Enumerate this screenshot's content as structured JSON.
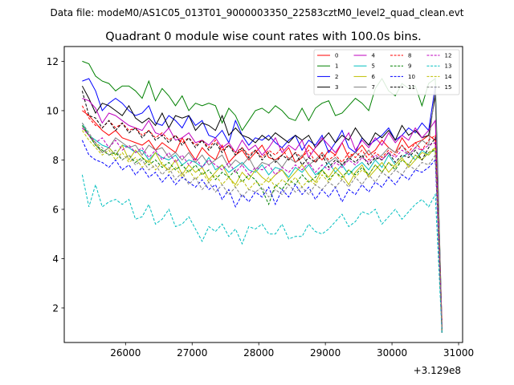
{
  "figure": {
    "suptitle": "Data file: modeM0/AS1C05_013T01_9000003350_22583cztM0_level2_quad_clean.evt",
    "title": "Quadrant 0 module wise count rates with 100.0s bins.",
    "x_offset_label": "+3.129e8"
  },
  "chart_data": {
    "type": "line",
    "title": "Quadrant 0 module wise count rates with 100.0s bins.",
    "xlabel": "",
    "ylabel": "",
    "x_offset": 312900000,
    "xlim": [
      25080,
      31060
    ],
    "ylim": [
      0.6,
      12.6
    ],
    "xticks": [
      26000,
      27000,
      28000,
      29000,
      30000,
      31000
    ],
    "xtick_labels": [
      "26000",
      "27000",
      "28000",
      "29000",
      "30000",
      "31000"
    ],
    "yticks": [
      2,
      4,
      6,
      8,
      10,
      12
    ],
    "ytick_labels": [
      "2",
      "4",
      "6",
      "8",
      "10",
      "12"
    ],
    "x_start": 25350,
    "x_step": 100,
    "n_points": 55,
    "grid": false,
    "legend": {
      "placement": "top-right",
      "columns": 4
    },
    "series": [
      {
        "name": "0",
        "color": "#ff0000",
        "dash": "solid",
        "values": [
          10.0,
          9.8,
          9.5,
          9.2,
          9.0,
          9.2,
          8.9,
          8.8,
          8.7,
          8.6,
          8.8,
          8.4,
          8.7,
          8.5,
          8.3,
          8.9,
          8.4,
          8.0,
          8.5,
          8.2,
          8.0,
          8.6,
          7.9,
          8.2,
          8.4,
          8.0,
          8.3,
          8.6,
          8.1,
          8.0,
          8.2,
          8.5,
          7.9,
          8.1,
          8.6,
          8.3,
          8.0,
          8.4,
          8.2,
          8.7,
          8.1,
          8.3,
          8.6,
          8.2,
          8.4,
          8.8,
          8.5,
          8.3,
          8.9,
          8.5,
          8.7,
          8.8,
          9.0,
          8.8,
          1.5
        ]
      },
      {
        "name": "1",
        "color": "#008000",
        "dash": "solid",
        "values": [
          12.0,
          11.9,
          11.4,
          11.2,
          11.1,
          10.8,
          11.0,
          11.0,
          10.8,
          10.5,
          11.2,
          10.4,
          10.9,
          10.6,
          10.2,
          10.6,
          10.0,
          10.3,
          10.2,
          10.3,
          10.2,
          9.5,
          10.1,
          9.8,
          9.2,
          9.6,
          10.0,
          10.1,
          9.9,
          10.2,
          10.0,
          9.7,
          9.6,
          10.1,
          9.6,
          10.1,
          10.3,
          10.4,
          9.8,
          9.9,
          10.2,
          10.5,
          10.3,
          10.0,
          10.9,
          11.3,
          10.8,
          10.6,
          11.1,
          10.9,
          11.0,
          10.2,
          11.1,
          11.3,
          1.2
        ]
      },
      {
        "name": "2",
        "color": "#0000ff",
        "dash": "solid",
        "values": [
          11.2,
          11.3,
          10.8,
          10.0,
          10.3,
          10.5,
          10.3,
          10.0,
          9.8,
          9.9,
          10.2,
          9.5,
          9.4,
          9.8,
          9.6,
          9.3,
          9.8,
          9.4,
          9.6,
          9.0,
          8.9,
          9.2,
          8.7,
          9.6,
          9.0,
          8.6,
          8.9,
          8.8,
          9.0,
          8.7,
          8.5,
          8.8,
          9.0,
          8.4,
          8.8,
          8.6,
          9.0,
          8.3,
          8.7,
          9.2,
          8.5,
          8.3,
          8.9,
          8.6,
          8.8,
          9.0,
          9.3,
          8.8,
          9.0,
          9.3,
          9.1,
          9.5,
          9.2,
          11.0,
          1.1
        ]
      },
      {
        "name": "3",
        "color": "#000000",
        "dash": "solid",
        "values": [
          11.0,
          10.5,
          9.9,
          10.3,
          10.2,
          10.0,
          9.8,
          10.2,
          9.7,
          9.5,
          9.7,
          9.4,
          9.9,
          9.3,
          9.8,
          9.7,
          9.8,
          9.2,
          9.5,
          9.4,
          9.2,
          9.8,
          9.0,
          9.3,
          9.0,
          8.9,
          8.7,
          9.0,
          8.8,
          9.1,
          8.9,
          8.7,
          9.0,
          8.8,
          9.0,
          8.5,
          8.8,
          9.1,
          8.7,
          9.0,
          8.8,
          9.3,
          8.9,
          8.6,
          9.1,
          8.9,
          9.2,
          8.8,
          9.4,
          9.0,
          9.2,
          8.9,
          9.0,
          10.6,
          1.0
        ]
      },
      {
        "name": "4",
        "color": "#bf00bf",
        "dash": "solid",
        "values": [
          10.5,
          10.4,
          10.1,
          9.5,
          9.9,
          9.8,
          9.6,
          9.4,
          9.3,
          9.2,
          9.6,
          9.1,
          9.0,
          9.3,
          8.8,
          8.9,
          9.1,
          8.7,
          8.8,
          8.6,
          8.9,
          8.5,
          8.7,
          8.3,
          8.8,
          8.4,
          8.6,
          8.2,
          8.5,
          8.9,
          8.3,
          8.6,
          8.4,
          8.8,
          8.1,
          8.5,
          8.9,
          8.6,
          8.3,
          8.7,
          9.1,
          8.4,
          8.8,
          8.5,
          8.9,
          8.6,
          9.1,
          8.7,
          9.0,
          8.8,
          9.3,
          8.9,
          9.2,
          9.6,
          1.3
        ]
      },
      {
        "name": "5",
        "color": "#00bfbf",
        "dash": "solid",
        "values": [
          9.5,
          9.0,
          8.8,
          8.6,
          8.5,
          8.2,
          8.6,
          8.5,
          8.3,
          8.4,
          8.0,
          8.3,
          8.1,
          8.0,
          8.2,
          7.8,
          8.0,
          7.9,
          7.7,
          8.1,
          7.6,
          7.8,
          7.5,
          7.7,
          7.9,
          7.6,
          7.5,
          7.8,
          7.4,
          7.7,
          7.6,
          7.3,
          7.7,
          7.5,
          7.8,
          7.4,
          7.6,
          7.9,
          7.5,
          7.8,
          7.4,
          7.7,
          7.9,
          7.6,
          8.0,
          7.7,
          8.2,
          7.8,
          8.1,
          8.3,
          8.0,
          8.4,
          8.2,
          8.5,
          1.2
        ]
      },
      {
        "name": "6",
        "color": "#bfbf00",
        "dash": "solid",
        "values": [
          9.3,
          9.0,
          8.7,
          8.3,
          8.5,
          8.2,
          8.6,
          8.0,
          8.4,
          8.1,
          7.9,
          8.3,
          7.8,
          7.6,
          8.0,
          7.4,
          7.8,
          7.5,
          7.7,
          7.2,
          7.5,
          7.8,
          7.3,
          7.0,
          7.5,
          7.2,
          7.6,
          7.3,
          7.1,
          7.4,
          7.6,
          7.2,
          7.5,
          7.8,
          7.4,
          7.1,
          7.6,
          7.3,
          7.7,
          7.4,
          7.0,
          7.5,
          7.8,
          7.3,
          7.6,
          7.9,
          7.5,
          7.8,
          8.1,
          7.7,
          8.0,
          8.3,
          8.2,
          8.5,
          1.2
        ]
      },
      {
        "name": "7",
        "color": "#808080",
        "dash": "solid",
        "values": [
          9.4,
          9.0,
          8.6,
          8.3,
          8.5,
          8.9,
          8.7,
          8.5,
          8.6,
          8.2,
          8.6,
          8.4,
          8.5,
          8.1,
          8.3,
          8.0,
          8.3,
          7.9,
          8.2,
          7.8,
          8.0,
          8.2,
          7.7,
          8.0,
          7.8,
          8.1,
          7.6,
          7.9,
          7.8,
          8.0,
          7.7,
          8.1,
          7.9,
          8.2,
          7.8,
          8.0,
          8.3,
          7.9,
          8.1,
          7.8,
          8.0,
          8.3,
          8.1,
          8.4,
          8.0,
          8.2,
          8.5,
          8.3,
          8.6,
          8.2,
          8.5,
          8.8,
          8.6,
          10.9,
          1.3
        ]
      },
      {
        "name": "8",
        "color": "#ff0000",
        "dash": "dashed",
        "values": [
          10.2,
          9.7,
          9.4,
          9.3,
          9.6,
          9.3,
          9.5,
          9.2,
          9.3,
          9.0,
          9.2,
          8.9,
          9.1,
          8.8,
          9.0,
          8.7,
          8.9,
          8.6,
          8.8,
          8.5,
          8.8,
          8.4,
          8.6,
          8.3,
          8.5,
          8.2,
          8.4,
          8.1,
          8.4,
          8.2,
          8.5,
          8.0,
          8.3,
          8.1,
          8.4,
          7.9,
          8.3,
          8.0,
          8.2,
          7.9,
          8.3,
          8.1,
          8.4,
          8.0,
          8.3,
          8.1,
          8.4,
          8.2,
          8.6,
          8.3,
          8.7,
          8.4,
          8.8,
          9.0,
          1.2
        ]
      },
      {
        "name": "9",
        "color": "#008000",
        "dash": "dashed",
        "values": [
          9.4,
          9.0,
          8.6,
          8.4,
          8.2,
          8.3,
          8.0,
          8.2,
          7.9,
          8.1,
          7.8,
          8.0,
          7.7,
          7.9,
          7.6,
          7.8,
          7.5,
          7.8,
          7.4,
          7.6,
          7.2,
          7.5,
          7.3,
          7.6,
          7.1,
          7.4,
          7.2,
          6.8,
          6.2,
          7.0,
          6.8,
          7.2,
          7.0,
          7.4,
          7.1,
          7.3,
          7.6,
          7.2,
          7.5,
          7.3,
          7.6,
          7.4,
          7.7,
          7.4,
          7.8,
          7.5,
          7.9,
          7.6,
          8.0,
          7.8,
          8.2,
          8.0,
          8.3,
          8.4,
          1.1
        ]
      },
      {
        "name": "10",
        "color": "#0000ff",
        "dash": "dashed",
        "values": [
          8.8,
          8.2,
          8.0,
          7.9,
          7.7,
          8.0,
          7.6,
          7.8,
          7.4,
          7.7,
          7.3,
          7.5,
          7.1,
          7.4,
          7.0,
          7.3,
          7.1,
          6.9,
          7.2,
          6.8,
          7.0,
          6.4,
          6.8,
          6.1,
          6.6,
          6.3,
          6.7,
          6.5,
          6.9,
          6.2,
          6.8,
          6.5,
          7.0,
          6.6,
          6.9,
          6.4,
          6.8,
          6.5,
          6.9,
          6.3,
          6.8,
          6.6,
          7.0,
          6.7,
          7.1,
          6.9,
          7.3,
          7.0,
          7.4,
          7.2,
          7.6,
          7.5,
          7.7,
          8.0,
          1.1
        ]
      },
      {
        "name": "11",
        "color": "#000000",
        "dash": "dashed",
        "values": [
          10.8,
          9.8,
          9.7,
          9.3,
          9.6,
          9.2,
          9.5,
          9.1,
          9.3,
          8.9,
          9.2,
          8.8,
          9.0,
          8.7,
          9.0,
          8.6,
          8.9,
          8.5,
          8.8,
          8.4,
          8.7,
          8.3,
          8.6,
          8.2,
          8.5,
          8.1,
          8.4,
          8.0,
          8.3,
          7.9,
          8.2,
          8.0,
          8.3,
          7.8,
          8.1,
          7.9,
          8.2,
          7.7,
          8.0,
          7.8,
          8.1,
          7.9,
          8.2,
          7.8,
          8.1,
          8.0,
          8.3,
          7.9,
          8.2,
          8.1,
          8.4,
          8.0,
          8.5,
          8.9,
          1.0
        ]
      },
      {
        "name": "12",
        "color": "#bf00bf",
        "dash": "dashed",
        "values": [
          9.3,
          9.0,
          8.7,
          8.9,
          8.5,
          8.8,
          8.4,
          8.6,
          8.3,
          8.5,
          8.1,
          8.4,
          8.0,
          8.3,
          7.9,
          8.2,
          7.8,
          8.1,
          7.7,
          8.0,
          7.8,
          7.6,
          7.9,
          7.5,
          7.8,
          7.4,
          7.7,
          7.6,
          7.8,
          7.4,
          7.7,
          7.5,
          7.8,
          7.6,
          7.9,
          7.5,
          7.8,
          7.6,
          7.9,
          7.7,
          8.0,
          7.8,
          8.1,
          7.9,
          8.2,
          8.0,
          8.3,
          8.1,
          8.4,
          8.2,
          8.5,
          8.4,
          8.6,
          8.7,
          1.2
        ]
      },
      {
        "name": "13",
        "color": "#00bfbf",
        "dash": "dashed",
        "values": [
          7.4,
          6.1,
          7.0,
          6.1,
          6.3,
          6.4,
          6.2,
          6.4,
          5.6,
          5.7,
          6.2,
          5.4,
          5.6,
          6.0,
          5.3,
          5.4,
          5.7,
          5.2,
          4.7,
          5.3,
          5.1,
          5.4,
          4.9,
          5.2,
          4.6,
          5.3,
          5.2,
          5.4,
          5.0,
          5.0,
          5.4,
          4.8,
          4.9,
          4.9,
          5.4,
          5.1,
          5.0,
          5.2,
          5.5,
          5.8,
          5.3,
          5.5,
          5.9,
          5.8,
          6.0,
          5.4,
          5.7,
          6.0,
          5.6,
          5.9,
          6.2,
          6.4,
          6.1,
          6.6,
          1.0
        ]
      },
      {
        "name": "14",
        "color": "#bfbf00",
        "dash": "dashed",
        "values": [
          9.2,
          8.8,
          8.5,
          8.2,
          8.4,
          8.0,
          8.3,
          7.9,
          8.1,
          7.7,
          8.0,
          7.6,
          7.9,
          7.5,
          7.7,
          7.3,
          7.6,
          7.2,
          7.5,
          7.1,
          7.4,
          7.0,
          7.3,
          6.9,
          7.2,
          6.8,
          7.1,
          7.0,
          7.3,
          6.9,
          7.2,
          7.0,
          7.3,
          6.9,
          7.2,
          7.0,
          7.4,
          7.1,
          7.5,
          7.2,
          7.6,
          7.3,
          7.6,
          7.4,
          7.8,
          7.5,
          7.9,
          7.7,
          8.0,
          7.8,
          8.2,
          8.0,
          8.3,
          8.5,
          1.1
        ]
      },
      {
        "name": "15",
        "color": "#808080",
        "dash": "dashed",
        "values": [
          9.5,
          9.1,
          8.7,
          8.5,
          8.2,
          8.4,
          8.0,
          8.2,
          7.8,
          8.0,
          7.6,
          7.8,
          7.4,
          7.7,
          7.2,
          7.5,
          7.0,
          7.3,
          6.8,
          7.1,
          6.7,
          7.0,
          6.6,
          6.9,
          6.5,
          6.8,
          6.7,
          6.9,
          6.5,
          6.8,
          6.6,
          7.0,
          6.7,
          6.9,
          6.6,
          7.0,
          6.8,
          7.1,
          6.9,
          7.2,
          6.9,
          7.3,
          7.0,
          7.4,
          7.1,
          7.5,
          7.3,
          7.6,
          7.4,
          7.8,
          7.6,
          7.9,
          7.8,
          8.2,
          1.1
        ]
      }
    ]
  }
}
